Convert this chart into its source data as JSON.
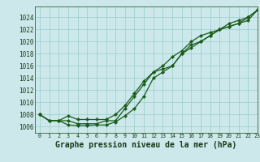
{
  "bg_color": "#cce8ea",
  "grid_color": "#99cccc",
  "line_color": "#1a5c1a",
  "marker_color": "#1a5c1a",
  "xlabel": "Graphe pression niveau de la mer (hPa)",
  "xlabel_fontsize": 7,
  "xlim": [
    -0.5,
    23
  ],
  "ylim": [
    1005.0,
    1025.8
  ],
  "yticks": [
    1006,
    1008,
    1010,
    1012,
    1014,
    1016,
    1018,
    1020,
    1022,
    1024
  ],
  "xticks": [
    0,
    1,
    2,
    3,
    4,
    5,
    6,
    7,
    8,
    9,
    10,
    11,
    12,
    13,
    14,
    15,
    16,
    17,
    18,
    19,
    20,
    21,
    22,
    23
  ],
  "series1": [
    1008,
    1007,
    1007,
    1007,
    1006.5,
    1006.5,
    1006.5,
    1007,
    1007,
    1009,
    1011,
    1013,
    1015,
    1015.5,
    1016,
    1018,
    1019.5,
    1020,
    1021,
    1022,
    1023,
    1023.5,
    1024,
    1025.2
  ],
  "series2": [
    1008,
    1007,
    1007,
    1006.3,
    1006.2,
    1006.2,
    1006.3,
    1006.3,
    1006.8,
    1007.8,
    1009,
    1011,
    1014,
    1015,
    1016,
    1018,
    1019,
    1020,
    1021,
    1022,
    1022.5,
    1023,
    1024,
    1025.2
  ],
  "series3": [
    1008,
    1007,
    1007,
    1007.8,
    1007.2,
    1007.2,
    1007.2,
    1007.2,
    1008,
    1009.5,
    1011.5,
    1013.5,
    1015,
    1016,
    1017.5,
    1018.5,
    1020,
    1021,
    1021.5,
    1022,
    1022.5,
    1023,
    1023.5,
    1025.2
  ]
}
